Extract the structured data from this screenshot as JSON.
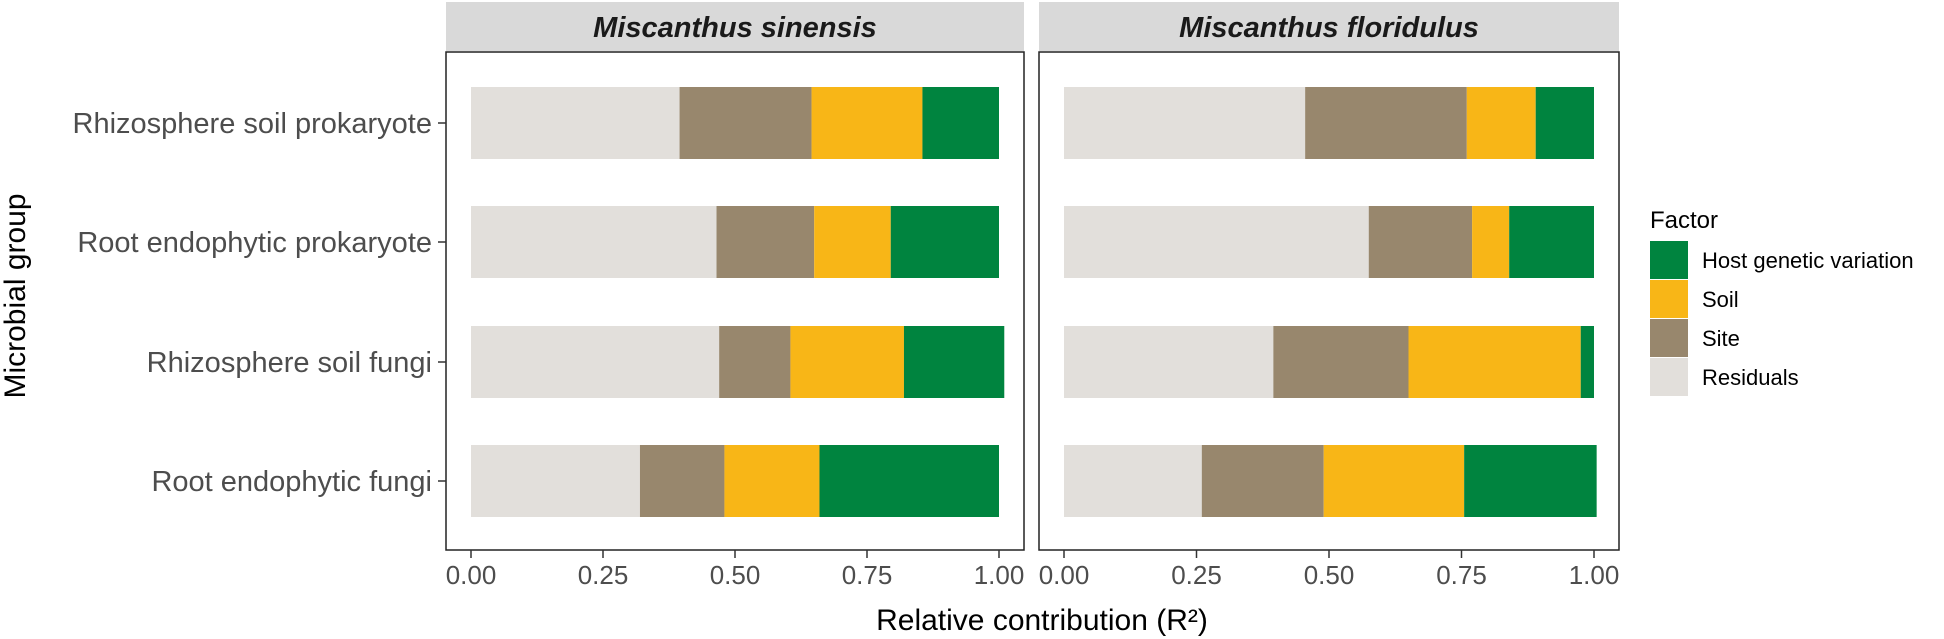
{
  "chart_data": {
    "type": "bar",
    "orientation": "horizontal",
    "stacked": true,
    "facet_labels": [
      "Miscanthus sinensis",
      "Miscanthus floridulus"
    ],
    "categories": [
      "Rhizosphere soil prokaryote",
      "Root endophytic prokaryote",
      "Rhizosphere soil fungi",
      "Root endophytic fungi"
    ],
    "ylabel": "Microbial group",
    "xlabel": "Relative contribution (R²)",
    "xlim": [
      0,
      1.0
    ],
    "xticks": [
      "0.00",
      "0.25",
      "0.50",
      "0.75",
      "1.00"
    ],
    "stack_order": [
      "Residuals",
      "Site",
      "Soil",
      "Host genetic variation"
    ],
    "colors": {
      "Host genetic variation": "#00843f",
      "Soil": "#f8b617",
      "Site": "#98876d",
      "Residuals": "#e2dfdb"
    },
    "legend": {
      "title": "Factor",
      "position": "right",
      "entries": [
        "Host genetic variation",
        "Soil",
        "Site",
        "Residuals"
      ]
    },
    "panels": [
      {
        "title": "Miscanthus sinensis",
        "series": [
          {
            "name": "Residuals",
            "values": [
              0.395,
              0.465,
              0.47,
              0.32
            ]
          },
          {
            "name": "Site",
            "values": [
              0.25,
              0.185,
              0.135,
              0.16
            ]
          },
          {
            "name": "Soil",
            "values": [
              0.21,
              0.145,
              0.215,
              0.18
            ]
          },
          {
            "name": "Host genetic variation",
            "values": [
              0.145,
              0.205,
              0.19,
              0.34
            ]
          }
        ]
      },
      {
        "title": "Miscanthus floridulus",
        "series": [
          {
            "name": "Residuals",
            "values": [
              0.455,
              0.575,
              0.395,
              0.26
            ]
          },
          {
            "name": "Site",
            "values": [
              0.305,
              0.195,
              0.255,
              0.23
            ]
          },
          {
            "name": "Soil",
            "values": [
              0.13,
              0.07,
              0.325,
              0.265
            ]
          },
          {
            "name": "Host genetic variation",
            "values": [
              0.11,
              0.16,
              0.025,
              0.25
            ]
          }
        ]
      }
    ]
  }
}
